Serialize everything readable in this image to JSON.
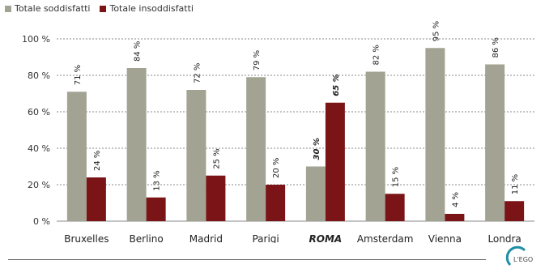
{
  "chart_data": {
    "type": "bar",
    "categories": [
      "Bruxelles",
      "Berlino",
      "Madrid",
      "Parigi",
      "ROMA",
      "Amsterdam",
      "Vienna",
      "Londra"
    ],
    "highlight_category": "ROMA",
    "series": [
      {
        "name": "Totale soddisfatti",
        "color": "#a3a393",
        "values": [
          71,
          84,
          72,
          79,
          30,
          82,
          95,
          86
        ],
        "labels": [
          "71 %",
          "84 %",
          "72 %",
          "79 %",
          "30 %",
          "82 %",
          "95 %",
          "86 %"
        ]
      },
      {
        "name": "Totale insoddisfatti",
        "color": "#7a1416",
        "values": [
          24,
          13,
          25,
          20,
          65,
          15,
          4,
          11
        ],
        "labels": [
          "24 %",
          "13 %",
          "25 %",
          "20 %",
          "65 %",
          "15 %",
          "4 %",
          "11 %"
        ]
      }
    ],
    "ylim": [
      0,
      100
    ],
    "yticks": [
      0,
      20,
      40,
      60,
      80,
      100
    ],
    "ytick_labels": [
      "0 %",
      "20 %",
      "40 %",
      "60 %",
      "80 %",
      "100 %"
    ],
    "grid": true,
    "legend_position": "top-left",
    "title": "",
    "xlabel": "",
    "ylabel": ""
  },
  "logo": {
    "text": "L'EGO",
    "color": "#1f8fa8"
  }
}
